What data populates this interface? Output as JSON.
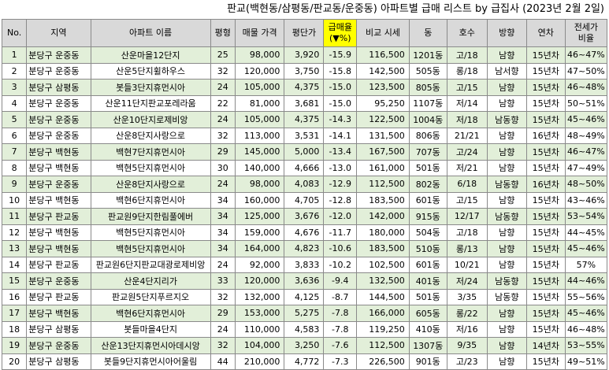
{
  "title": "판교(백현동/삼평동/판교동/운중동) 아파트별 급매 리스트 by 급집사 (2023년 2월 2일)",
  "headers": [
    "No.",
    "지역",
    "아파트 이름",
    "평형",
    "매물 가격",
    "평단가",
    "급매율\n(▼%)",
    "비교 시세",
    "동",
    "호수",
    "방향",
    "연차",
    "전세가\n비율"
  ],
  "rows": [
    [
      "1",
      "분당구 운중동",
      "산운마을12단지",
      "25",
      "98,000",
      "3,920",
      "-15.9",
      "116,500",
      "1201동",
      "고/18",
      "남향",
      "15년차",
      "46~47%"
    ],
    [
      "2",
      "분당구 운중동",
      "산운5단지휠하우스",
      "32",
      "120,000",
      "3,750",
      "-15.8",
      "142,500",
      "505동",
      "롱/18",
      "남서향",
      "15년차",
      "47~50%"
    ],
    [
      "3",
      "분당구 삼평동",
      "봇들3단지휴먼시아",
      "24",
      "105,000",
      "4,375",
      "-15.0",
      "123,500",
      "805동",
      "고/15",
      "남향",
      "15년차",
      "46~48%"
    ],
    [
      "4",
      "분당구 운중동",
      "산운11단지판교포레라움",
      "22",
      "81,000",
      "3,681",
      "-15.0",
      "95,250",
      "1107동",
      "저/14",
      "남향",
      "15년차",
      "50~51%"
    ],
    [
      "5",
      "분당구 운중동",
      "산운10단지로제비앙",
      "24",
      "105,000",
      "4,375",
      "-14.3",
      "122,500",
      "1004동",
      "저/18",
      "남동향",
      "15년차",
      "45~46%"
    ],
    [
      "6",
      "분당구 운중동",
      "산운8단지사랑으로",
      "32",
      "113,000",
      "3,531",
      "-14.1",
      "131,500",
      "806동",
      "21/21",
      "남향",
      "16년차",
      "48~49%"
    ],
    [
      "7",
      "분당구 백현동",
      "백현7단지휴먼시아",
      "29",
      "145,000",
      "5,000",
      "-13.4",
      "167,500",
      "707동",
      "고/24",
      "남향",
      "15년차",
      "46~47%"
    ],
    [
      "8",
      "분당구 백현동",
      "백현5단지휴먼시아",
      "30",
      "140,000",
      "4,666",
      "-13.0",
      "161,000",
      "501동",
      "저/21",
      "남향",
      "15년차",
      "47~49%"
    ],
    [
      "9",
      "분당구 운중동",
      "산운8단지사랑으로",
      "24",
      "98,000",
      "4,083",
      "-12.9",
      "112,500",
      "802동",
      "6/18",
      "남동향",
      "16년차",
      "48~50%"
    ],
    [
      "10",
      "분당구 백현동",
      "백현6단지휴먼시아",
      "34",
      "160,000",
      "4,705",
      "-12.8",
      "183,500",
      "601동",
      "고/15",
      "남향",
      "15년차",
      "43~46%"
    ],
    [
      "11",
      "분당구 판교동",
      "판교원9단지한림풀에버",
      "34",
      "125,000",
      "3,676",
      "-12.0",
      "142,000",
      "915동",
      "12/17",
      "남동향",
      "15년차",
      "53~54%"
    ],
    [
      "12",
      "분당구 백현동",
      "백현5단지휴먼시아",
      "34",
      "159,000",
      "4,676",
      "-11.7",
      "180,000",
      "504동",
      "고/18",
      "남향",
      "15년차",
      "44~45%"
    ],
    [
      "13",
      "분당구 백현동",
      "백현5단지휴먼시아",
      "34",
      "164,000",
      "4,823",
      "-10.6",
      "183,500",
      "510동",
      "롱/13",
      "남향",
      "15년차",
      "45~46%"
    ],
    [
      "14",
      "분당구 판교동",
      "판교원6단지판교대광로제비앙",
      "24",
      "92,000",
      "3,833",
      "-10.2",
      "102,500",
      "601동",
      "10/21",
      "남향",
      "15년차",
      "57%"
    ],
    [
      "15",
      "분당구 운중동",
      "산운4단지리가",
      "33",
      "120,000",
      "3,636",
      "-9.4",
      "132,500",
      "401동",
      "저/24",
      "남동향",
      "15년차",
      "44~46%"
    ],
    [
      "16",
      "분당구 판교동",
      "판교원5단지푸르지오",
      "32",
      "132,000",
      "4,125",
      "-8.7",
      "144,500",
      "501동",
      "3/35",
      "남동향",
      "15년차",
      "55~56%"
    ],
    [
      "17",
      "분당구 백현동",
      "백현6단지휴먼시아",
      "29",
      "153,000",
      "5,275",
      "-7.8",
      "166,000",
      "605동",
      "롱/22",
      "남향",
      "15년차",
      "45~46%"
    ],
    [
      "18",
      "분당구 삼평동",
      "봇들마을4단지",
      "24",
      "110,000",
      "4,583",
      "-7.8",
      "119,250",
      "410동",
      "저/16",
      "남향",
      "15년차",
      "46~48%"
    ],
    [
      "19",
      "분당구 운중동",
      "산운13단지휴먼시아데시앙",
      "32",
      "104,000",
      "3,250",
      "-7.6",
      "112,500",
      "1307동",
      "9/35",
      "남향",
      "14년차",
      "53~55%"
    ],
    [
      "20",
      "분당구 삼평동",
      "봇들9단지휴먼시아어울림",
      "44",
      "210,000",
      "4,772",
      "-7.3",
      "226,500",
      "901동",
      "고/23",
      "남향",
      "15년차",
      "49~51%"
    ]
  ]
}
